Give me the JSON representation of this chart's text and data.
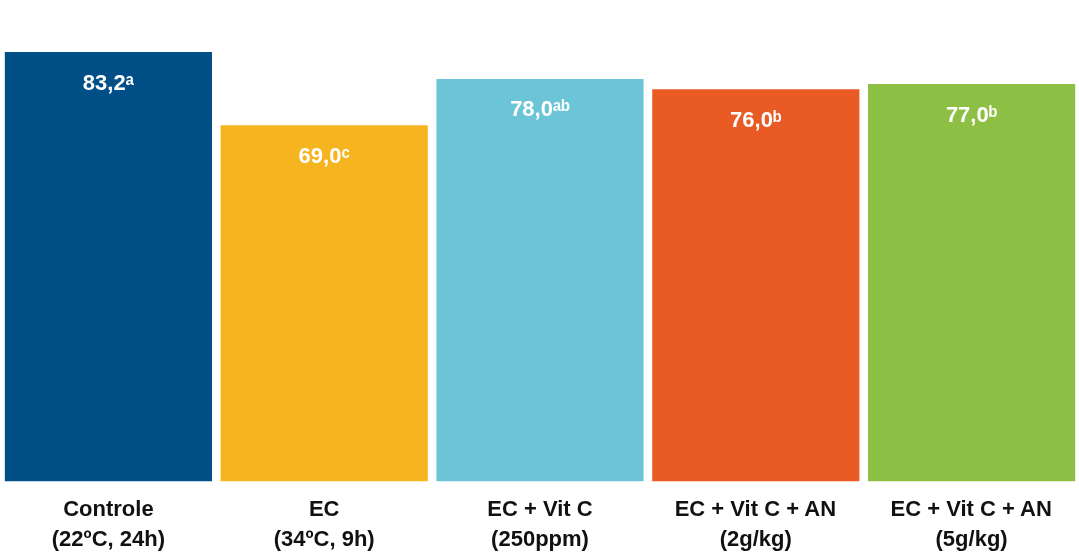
{
  "chart_data": {
    "type": "bar",
    "categories": [
      "Controle\n(22ºC, 24h)",
      "EC\n(34ºC, 9h)",
      "EC + Vit C\n(250ppm)",
      "EC + Vit C + AN\n(2g/kg)",
      "EC + Vit C + AN\n(5g/kg)"
    ],
    "values": [
      83.2,
      69.0,
      78.0,
      76.0,
      77.0
    ],
    "colors": [
      "#004f86",
      "#f6b41f",
      "#6cc5d6",
      "#e95a24",
      "#8cbf44"
    ],
    "value_labels": [
      "83,2ᵃ",
      "69,0ᶜ",
      "78,0ᵃᵇ",
      "76,0ᵇ",
      "77,0ᵇ"
    ],
    "grid": false
  }
}
